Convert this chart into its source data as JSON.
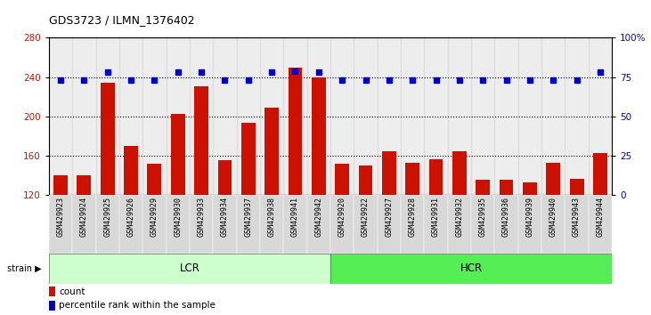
{
  "title": "GDS3723 / ILMN_1376402",
  "samples": [
    "GSM429923",
    "GSM429924",
    "GSM429925",
    "GSM429926",
    "GSM429929",
    "GSM429930",
    "GSM429933",
    "GSM429934",
    "GSM429937",
    "GSM429938",
    "GSM429941",
    "GSM429942",
    "GSM429920",
    "GSM429922",
    "GSM429927",
    "GSM429928",
    "GSM429931",
    "GSM429932",
    "GSM429935",
    "GSM429936",
    "GSM429939",
    "GSM429940",
    "GSM429943",
    "GSM429944"
  ],
  "counts": [
    140,
    140,
    234,
    170,
    152,
    203,
    231,
    156,
    194,
    209,
    250,
    240,
    152,
    150,
    165,
    153,
    157,
    165,
    136,
    136,
    133,
    153,
    137,
    163
  ],
  "percentile_ranks": [
    73,
    73,
    78,
    73,
    73,
    78,
    78,
    73,
    73,
    78,
    79,
    78,
    73,
    73,
    73,
    73,
    73,
    73,
    73,
    73,
    73,
    73,
    73,
    78
  ],
  "lcr_samples": 12,
  "hcr_samples": 12,
  "lcr_label": "LCR",
  "hcr_label": "HCR",
  "strain_label": "strain",
  "ylim_left": [
    120,
    280
  ],
  "ylim_right": [
    0,
    100
  ],
  "yticks_left": [
    120,
    160,
    200,
    240,
    280
  ],
  "yticks_right": [
    0,
    25,
    50,
    75,
    100
  ],
  "bar_color": "#cc1100",
  "dot_color": "#0000cc",
  "lcr_bg": "#ccffcc",
  "hcr_bg": "#55ee55",
  "tick_bg": "#d8d8d8",
  "right_axis_color": "#0000cc",
  "left_axis_color": "#cc1100",
  "fig_bg": "#ffffff"
}
